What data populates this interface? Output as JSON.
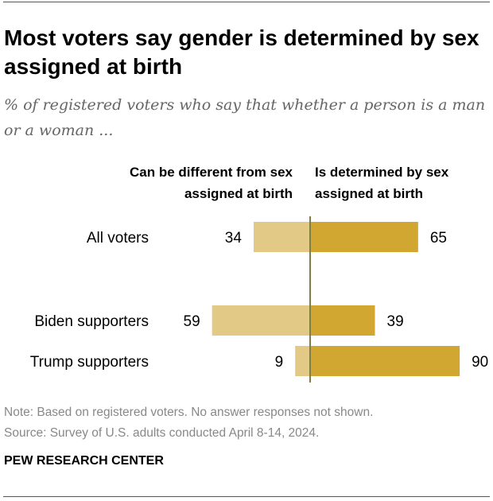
{
  "title": "Most voters say gender is determined by sex assigned at birth",
  "subtitle": "% of registered voters who say that whether a person is a man or a woman ...",
  "note": "Note: Based on registered voters. No answer responses not shown.",
  "source": "Source: Survey of U.S. adults conducted April 8-14, 2024.",
  "logo": "PEW RESEARCH CENTER",
  "chart_data": {
    "type": "bar",
    "orientation": "horizontal-diverging",
    "categories": [
      "All voters",
      "Biden supporters",
      "Trump supporters"
    ],
    "series": [
      {
        "name": "Can be different from sex assigned at birth",
        "values": [
          34,
          59,
          9
        ],
        "color": "#e2c985",
        "direction": "left"
      },
      {
        "name": "Is determined by sex assigned at birth",
        "values": [
          65,
          39,
          90
        ],
        "color": "#d1a732",
        "direction": "right"
      }
    ],
    "axis_color": "#7d7f43",
    "xlim": [
      0,
      100
    ]
  }
}
